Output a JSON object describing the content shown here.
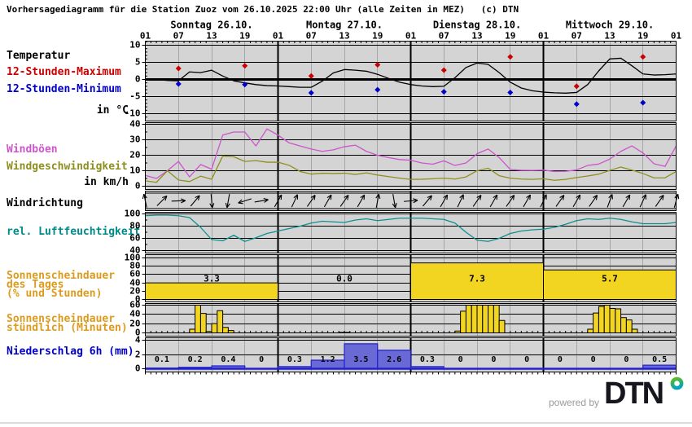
{
  "title": "Vorhersagediagramm für die Station Zuoz vom 26.10.2025 22:00 Uhr (alle Zeiten in MEZ)   (c) DTN",
  "station": "Zuoz",
  "run_time": "26.10.2025 22:00 Uhr",
  "timezone_note": "alle Zeiten in MEZ",
  "copyright": "(c) DTN",
  "sidebar": {
    "temperature": "Temperatur",
    "max12": "12-Stunden-Maximum",
    "min12": "12-Stunden-Minimum",
    "temp_unit": "in °C",
    "gusts": "Windböen",
    "wind_speed": "Windgeschwindigkeit",
    "wind_unit": "in km/h",
    "wind_dir": "Windrichtung",
    "humidity": "rel. Luftfeuchtigkeit",
    "sun_day_1": "Sonnenscheindauer",
    "sun_day_2": "des Tages",
    "sun_day_3": "(% und Stunden)",
    "sun_hour_1": "Sonnenscheindauer",
    "sun_hour_2": "stündlich (Minuten)",
    "precip": "Niederschlag 6h (mm)"
  },
  "axis": {
    "days": [
      "Sonntag 26.10.",
      "Montag 27.10.",
      "Dienstag 28.10.",
      "Mittwoch 29.10."
    ],
    "time_labels": [
      "01",
      "07",
      "13",
      "19"
    ],
    "total_hours": 96,
    "tick_interval_hours": 6,
    "day_interval_hours": 24
  },
  "colors": {
    "temperature": "#000000",
    "max": "#cc0000",
    "min": "#0000cc",
    "gusts": "#cc55cc",
    "wind_speed": "#8f8f1f",
    "humidity": "#0f9090",
    "humidity_label": "#008b8b",
    "sunshine_fill": "#f2d521",
    "sunshine_label": "#dd9b1e",
    "precip_fill": "#6a6ad6",
    "precip_stroke": "#2222cc",
    "precip_label": "#0000cc",
    "plot_bg": "#d4d4d4",
    "grid_minor": "#a6a6a6",
    "grid_major": "#000000",
    "powered_by": "#9a9a9a",
    "brand": "#16161f",
    "brand_dot_green": "#5eb928",
    "brand_dot_teal": "#00a5bc"
  },
  "footer": {
    "powered_by": "powered by",
    "brand": "DTN"
  },
  "chart_data": [
    {
      "id": "temperature",
      "type": "line",
      "title": "Temperatur in °C",
      "ylim": [
        -11.2,
        11.2
      ],
      "yticks": [
        10,
        5,
        0,
        -5,
        -10
      ],
      "zero_line": true,
      "x_step_hours": 2,
      "series": [
        {
          "name": "Temperatur",
          "color": "#000000",
          "values": [
            0.2,
            0.0,
            -0.3,
            -0.4,
            2.2,
            2.0,
            2.7,
            1.0,
            -0.4,
            -1.0,
            -1.5,
            -1.8,
            -1.9,
            -2.1,
            -2.3,
            -2.3,
            -0.5,
            1.9,
            2.9,
            2.7,
            2.4,
            1.5,
            0.3,
            -0.8,
            -1.5,
            -1.9,
            -2.1,
            -2.0,
            0.5,
            3.5,
            4.8,
            4.4,
            2.0,
            -0.8,
            -2.5,
            -3.3,
            -3.7,
            -3.9,
            -4.0,
            -3.8,
            -1.5,
            2.5,
            6.0,
            6.2,
            4.0,
            1.6,
            1.3,
            1.4,
            1.6
          ]
        }
      ],
      "markers": [
        {
          "name": "12-Stunden-Maximum",
          "color": "#cc0000",
          "x_hours": [
            6,
            18,
            30,
            42,
            54,
            66,
            78,
            90
          ],
          "values": [
            3.2,
            4.0,
            1.0,
            4.3,
            2.7,
            6.6,
            -2.0,
            6.6
          ]
        },
        {
          "name": "12-Stunden-Minimum",
          "color": "#0000cc",
          "x_hours": [
            6,
            18,
            30,
            42,
            54,
            66,
            78,
            90
          ],
          "values": [
            -1.3,
            -1.5,
            -3.9,
            -3.0,
            -3.6,
            -3.8,
            -7.2,
            -6.8
          ]
        }
      ]
    },
    {
      "id": "wind",
      "type": "line",
      "title": "Windböen / Windgeschwindigkeit in km/h",
      "ylim": [
        -2,
        41
      ],
      "yticks": [
        40,
        30,
        20,
        10,
        0
      ],
      "x_step_hours": 2,
      "series": [
        {
          "name": "Windböen",
          "color": "#cc55cc",
          "values": [
            7,
            5,
            10,
            16,
            6,
            14,
            11,
            33,
            35,
            35,
            26,
            37,
            33,
            28,
            26,
            24,
            22.5,
            23.5,
            25.5,
            26.5,
            22.5,
            20,
            18.5,
            17.2,
            16.8,
            15,
            14.2,
            16.4,
            13.4,
            15,
            21,
            24,
            18.5,
            10.8,
            10.3,
            10.2,
            10.4,
            9.5,
            9.6,
            10.5,
            13.4,
            14.3,
            17.5,
            22.5,
            26,
            21.5,
            14.5,
            12.8,
            26
          ]
        },
        {
          "name": "Windgeschwindigkeit",
          "color": "#8f8f1f",
          "values": [
            3.5,
            2.5,
            10,
            4,
            3,
            6.5,
            4.5,
            19.5,
            19,
            16,
            16.5,
            15.5,
            15.5,
            13.5,
            9.5,
            7.8,
            8.4,
            8.2,
            8.4,
            7.6,
            8.6,
            7.2,
            6.2,
            5.2,
            4.4,
            4.5,
            4.8,
            5.2,
            4.6,
            6,
            10,
            11.6,
            6.8,
            5.2,
            4.6,
            4.4,
            4.8,
            3.8,
            4.4,
            5.6,
            6.6,
            7.8,
            10.2,
            12.4,
            10.4,
            8.2,
            5.4,
            5.4,
            9.5
          ]
        }
      ]
    },
    {
      "id": "winddir",
      "type": "arrows",
      "title": "Windrichtung",
      "arrow_interval_hours": 3,
      "angles_deg": [
        -12,
        45,
        88,
        40,
        175,
        190,
        252,
        80,
        30,
        25,
        35,
        30,
        35,
        30,
        10,
        170,
        85,
        40,
        30,
        25,
        35,
        30,
        35,
        30,
        25,
        35,
        30,
        35,
        20,
        30,
        25,
        35,
        15
      ]
    },
    {
      "id": "humidity",
      "type": "line",
      "title": "rel. Luftfeuchtigkeit in %",
      "ylim": [
        36,
        103
      ],
      "yticks": [
        100,
        80,
        60,
        40
      ],
      "x_step_hours": 2,
      "series": [
        {
          "name": "rel. Luftfeuchtigkeit",
          "color": "#0f9090",
          "values": [
            97,
            98,
            98,
            97,
            94,
            78,
            58,
            56,
            65,
            55,
            61,
            68,
            72,
            76,
            80,
            85,
            88,
            87,
            86,
            90,
            92,
            89,
            91,
            93,
            93,
            93,
            92,
            91,
            85,
            70,
            57,
            55,
            60,
            68,
            72,
            74,
            75,
            78,
            83,
            89,
            92,
            91,
            93,
            91,
            87,
            84,
            84,
            84,
            86
          ]
        }
      ]
    },
    {
      "id": "sun_day",
      "type": "bar",
      "title": "Sonnenscheindauer des Tages (% und Stunden)",
      "ylim": [
        0,
        100
      ],
      "yticks": [
        100,
        80,
        60,
        40,
        20,
        0
      ],
      "bar_span_hours": 24,
      "values_percent": [
        40,
        0,
        88,
        71
      ],
      "labels": [
        "3.3",
        "0.0",
        "7.3",
        "5.7"
      ]
    },
    {
      "id": "sun_hourly",
      "type": "bar",
      "title": "Sonnenscheindauer stündlich (Minuten)",
      "ylim": [
        0,
        60
      ],
      "yticks": [
        60,
        40,
        20,
        0
      ],
      "bar_span_hours": 1,
      "groups": [
        {
          "start_hour": 8,
          "minutes": [
            8,
            60,
            42,
            3,
            20,
            48,
            12,
            5
          ]
        },
        {
          "start_hour": 35,
          "minutes": [
            1,
            1
          ]
        },
        {
          "start_hour": 56,
          "minutes": [
            4,
            47,
            60,
            60,
            60,
            60,
            60,
            60,
            27
          ]
        },
        {
          "start_hour": 80,
          "minutes": [
            8,
            43,
            57,
            60,
            53,
            52,
            33,
            28,
            8
          ]
        }
      ]
    },
    {
      "id": "precip",
      "type": "bar",
      "title": "Niederschlag 6h (mm)",
      "ylim": [
        0,
        4.6
      ],
      "yticks": [
        4,
        2,
        0
      ],
      "bar_span_hours": 6,
      "values_mm": [
        0.1,
        0.2,
        0.4,
        0,
        0.3,
        1.2,
        3.5,
        2.6,
        0.3,
        0,
        0,
        0,
        0,
        0,
        0,
        0.5
      ],
      "labels": [
        "0.1",
        "0.2",
        "0.4",
        "0",
        "0.3",
        "1.2",
        "3.5",
        "2.6",
        "0.3",
        "0",
        "0",
        "0",
        "0",
        "0",
        "0",
        "0.5"
      ]
    }
  ]
}
